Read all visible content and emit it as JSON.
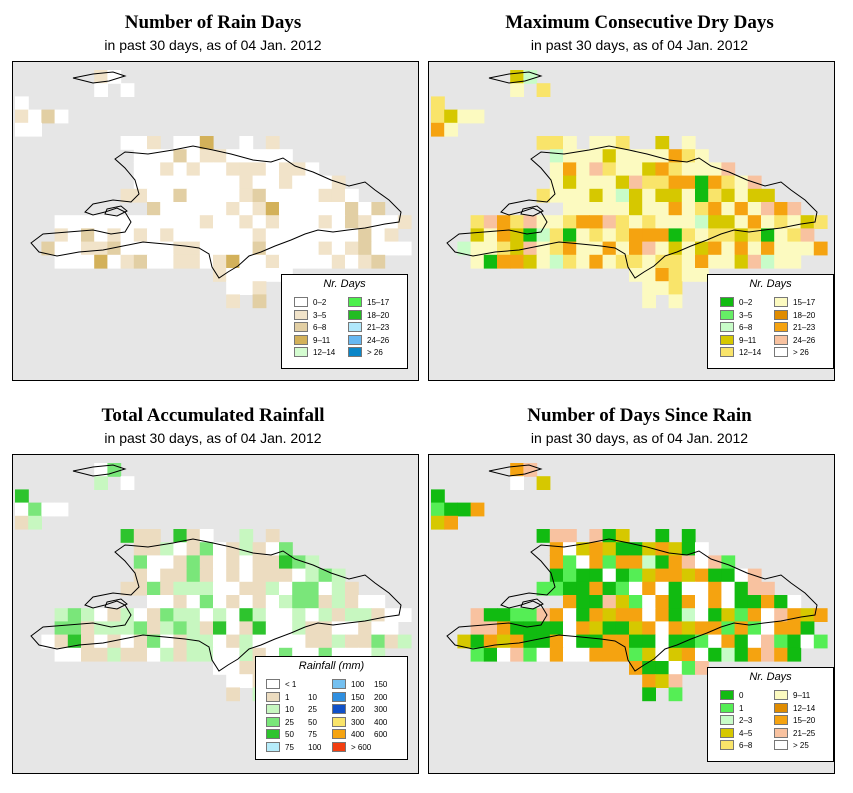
{
  "panels": [
    {
      "id": "rain-days",
      "title": "Number of Rain Days",
      "subtitle": "in past 30 days, as of  04 Jan. 2012",
      "legend": {
        "title": "Nr. Days",
        "items": [
          {
            "label": "0–2",
            "color": "#ffffff"
          },
          {
            "label": "3–5",
            "color": "#f1e3c9"
          },
          {
            "label": "6–8",
            "color": "#e2cfa4"
          },
          {
            "label": "9–11",
            "color": "#d3b15a"
          },
          {
            "label": "12–14",
            "color": "#d4fcd0"
          },
          {
            "label": "15–17",
            "color": "#4cf04c"
          },
          {
            "label": "18–20",
            "color": "#22bb22"
          },
          {
            "label": "21–23",
            "color": "#b0e8fc"
          },
          {
            "label": "24–26",
            "color": "#66b8f2"
          },
          {
            "label": "> 26",
            "color": "#0a86c8"
          }
        ]
      }
    },
    {
      "id": "max-dry-days",
      "title": "Maximum Consecutive Dry Days",
      "subtitle": "in past 30 days, as of  04 Jan. 2012",
      "legend": {
        "title": "Nr. Days",
        "items": [
          {
            "label": "0–2",
            "color": "#11bb11"
          },
          {
            "label": "3–5",
            "color": "#66ee66"
          },
          {
            "label": "6–8",
            "color": "#c8fcc8"
          },
          {
            "label": "9–11",
            "color": "#d6c800"
          },
          {
            "label": "12–14",
            "color": "#f9e46a"
          },
          {
            "label": "15–17",
            "color": "#fcfac0"
          },
          {
            "label": "18–20",
            "color": "#e08c00"
          },
          {
            "label": "21–23",
            "color": "#f5a310"
          },
          {
            "label": "24–26",
            "color": "#f8c2a0"
          },
          {
            "label": "> 26",
            "color": "#ffffff"
          }
        ]
      }
    },
    {
      "id": "total-rainfall",
      "title": "Total Accumulated Rainfall",
      "subtitle": "in past 30 days, as of  04 Jan. 2012",
      "legend": {
        "title": "Rainfall (mm)",
        "items": [
          {
            "lo": "< 1",
            "hi": "",
            "color": "#ffffff"
          },
          {
            "lo": "1",
            "hi": "10",
            "color": "#ecdcc0"
          },
          {
            "lo": "10",
            "hi": "25",
            "color": "#c7f7c0"
          },
          {
            "lo": "25",
            "hi": "50",
            "color": "#7ae67a"
          },
          {
            "lo": "50",
            "hi": "75",
            "color": "#2ec42e"
          },
          {
            "lo": "75",
            "hi": "100",
            "color": "#b6ecfa"
          },
          {
            "lo": "100",
            "hi": "150",
            "color": "#74c0f0"
          },
          {
            "lo": "150",
            "hi": "200",
            "color": "#2f8fe0"
          },
          {
            "lo": "200",
            "hi": "300",
            "color": "#1050c8"
          },
          {
            "lo": "300",
            "hi": "400",
            "color": "#f9e46a"
          },
          {
            "lo": "400",
            "hi": "600",
            "color": "#f5a310"
          },
          {
            "lo": "> 600",
            "hi": "",
            "color": "#f23e10"
          }
        ]
      }
    },
    {
      "id": "days-since-rain",
      "title": "Number of Days Since Rain",
      "subtitle": "in past 30 days, as of  04 Jan. 2012",
      "legend": {
        "title": "Nr. Days",
        "items": [
          {
            "label": "0",
            "color": "#11bb11"
          },
          {
            "label": "1",
            "color": "#55ee55"
          },
          {
            "label": "2–3",
            "color": "#c8fcc8"
          },
          {
            "label": "4–5",
            "color": "#d6c800"
          },
          {
            "label": "6–8",
            "color": "#f9e46a"
          },
          {
            "label": "9–11",
            "color": "#fcfac0"
          },
          {
            "label": "12–14",
            "color": "#e08c00"
          },
          {
            "label": "15–20",
            "color": "#f5a310"
          },
          {
            "label": "21–25",
            "color": "#f8c2a0"
          },
          {
            "label": "> 25",
            "color": "#ffffff"
          }
        ]
      }
    }
  ]
}
